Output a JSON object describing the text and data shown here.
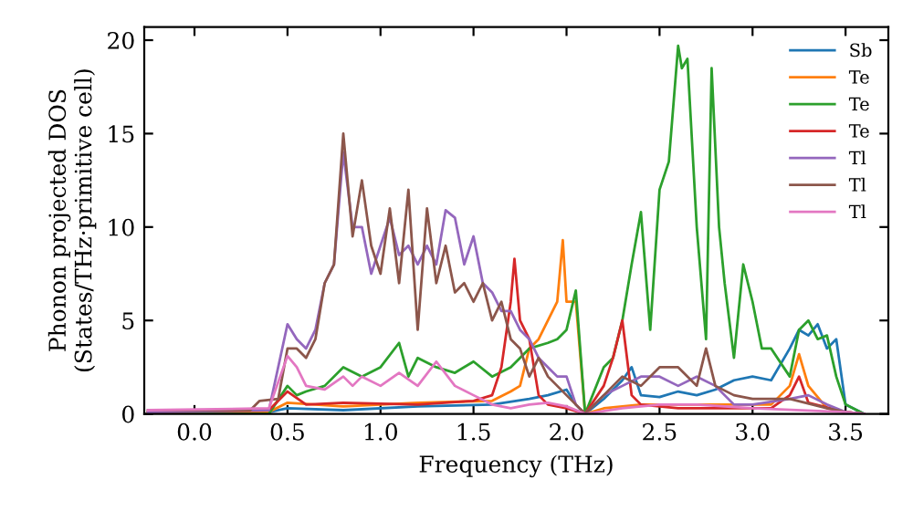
{
  "chart_data": {
    "type": "line",
    "xlabel": "Frequency (THz)",
    "ylabel": "Phonon projected DOS\n(States/THz·primitive cell)",
    "xlim": [
      -0.27,
      3.73
    ],
    "ylim": [
      0,
      20.7
    ],
    "xticks": [
      {
        "value": 0.0,
        "label": "0.0"
      },
      {
        "value": 0.5,
        "label": "0.5"
      },
      {
        "value": 1.0,
        "label": "1.0"
      },
      {
        "value": 1.5,
        "label": "1.5"
      },
      {
        "value": 2.0,
        "label": "2.0"
      },
      {
        "value": 2.5,
        "label": "2.5"
      },
      {
        "value": 3.0,
        "label": "3.0"
      },
      {
        "value": 3.5,
        "label": "3.5"
      }
    ],
    "yticks": [
      0,
      5,
      10,
      15,
      20
    ],
    "grid": false,
    "legend": "top right",
    "marker": "none",
    "line_style": "solid",
    "series": [
      {
        "name": "Sb",
        "color": "#1f77b4",
        "x": [
          -0.25,
          0.4,
          0.5,
          0.8,
          1.2,
          1.6,
          1.8,
          1.9,
          2.0,
          2.05,
          2.1,
          2.2,
          2.3,
          2.35,
          2.4,
          2.5,
          2.6,
          2.7,
          2.8,
          2.9,
          3.0,
          3.1,
          3.2,
          3.25,
          3.3,
          3.35,
          3.4,
          3.45,
          3.5,
          3.6
        ],
        "values": [
          0.1,
          0.1,
          0.3,
          0.2,
          0.4,
          0.5,
          0.8,
          1.0,
          1.3,
          0.5,
          0,
          0.8,
          1.8,
          2.5,
          1.0,
          0.9,
          1.2,
          1.0,
          1.3,
          1.8,
          2.0,
          1.8,
          3.5,
          4.5,
          4.2,
          4.8,
          3.5,
          4.0,
          0.5,
          0
        ]
      },
      {
        "name": "Te",
        "color": "#ff7f0e",
        "x": [
          -0.25,
          0.4,
          0.5,
          0.8,
          1.2,
          1.6,
          1.7,
          1.75,
          1.8,
          1.85,
          1.9,
          1.95,
          1.98,
          2.0,
          2.05,
          2.1,
          2.2,
          2.4,
          2.8,
          3.1,
          3.2,
          3.25,
          3.3,
          3.4,
          3.5,
          3.6
        ],
        "values": [
          0.1,
          0.1,
          0.6,
          0.4,
          0.6,
          0.7,
          1.2,
          1.5,
          3.5,
          4.0,
          5.0,
          6.0,
          9.3,
          6.0,
          6.0,
          0,
          0.3,
          0.5,
          0.5,
          0.5,
          1.5,
          3.2,
          1.5,
          0.3,
          0.1,
          0
        ]
      },
      {
        "name": "Te",
        "color": "#2ca02c",
        "x": [
          -0.25,
          0.4,
          0.5,
          0.55,
          0.6,
          0.7,
          0.8,
          0.9,
          1.0,
          1.1,
          1.15,
          1.2,
          1.3,
          1.4,
          1.5,
          1.6,
          1.7,
          1.8,
          1.9,
          1.95,
          2.0,
          2.05,
          2.1,
          2.2,
          2.25,
          2.3,
          2.35,
          2.4,
          2.45,
          2.5,
          2.55,
          2.6,
          2.62,
          2.65,
          2.7,
          2.75,
          2.78,
          2.82,
          2.85,
          2.9,
          2.95,
          3.0,
          3.05,
          3.1,
          3.2,
          3.25,
          3.3,
          3.35,
          3.4,
          3.45,
          3.5,
          3.6
        ],
        "values": [
          0,
          0,
          1.5,
          1.0,
          1.2,
          1.5,
          2.5,
          2.0,
          2.5,
          3.8,
          2.0,
          3.0,
          2.5,
          2.2,
          2.8,
          2.0,
          2.5,
          3.5,
          3.8,
          4.0,
          4.5,
          6.6,
          0,
          2.5,
          3.0,
          5.0,
          8.0,
          10.8,
          4.5,
          12.0,
          13.5,
          19.7,
          18.5,
          19.0,
          10.0,
          4.0,
          18.5,
          10.0,
          7.0,
          3.0,
          8.0,
          6.0,
          3.5,
          3.5,
          2.0,
          4.5,
          5.0,
          4.0,
          4.2,
          2.0,
          0.5,
          0
        ]
      },
      {
        "name": "Te",
        "color": "#d62728",
        "x": [
          -0.25,
          0.4,
          0.5,
          0.6,
          0.8,
          1.2,
          1.5,
          1.6,
          1.65,
          1.7,
          1.72,
          1.75,
          1.8,
          1.85,
          1.9,
          2.0,
          2.1,
          2.2,
          2.25,
          2.3,
          2.35,
          2.4,
          2.6,
          3.1,
          3.2,
          3.25,
          3.3,
          3.5,
          3.6
        ],
        "values": [
          0.1,
          0.2,
          1.2,
          0.5,
          0.6,
          0.5,
          0.7,
          1.0,
          2.5,
          6.0,
          8.3,
          5.0,
          4.0,
          1.0,
          0.5,
          0.3,
          0,
          1.5,
          3.0,
          5.0,
          1.0,
          0.5,
          0.3,
          0.3,
          1.0,
          2.0,
          0.6,
          0.1,
          0
        ]
      },
      {
        "name": "Tl",
        "color": "#9467bd",
        "x": [
          -0.25,
          0.4,
          0.5,
          0.55,
          0.6,
          0.65,
          0.7,
          0.75,
          0.8,
          0.85,
          0.9,
          0.95,
          1.0,
          1.05,
          1.1,
          1.15,
          1.2,
          1.25,
          1.3,
          1.35,
          1.4,
          1.45,
          1.5,
          1.55,
          1.6,
          1.65,
          1.7,
          1.75,
          1.8,
          1.85,
          1.9,
          1.95,
          2.0,
          2.05,
          2.1,
          2.2,
          2.3,
          2.4,
          2.5,
          2.6,
          2.7,
          2.8,
          2.9,
          3.0,
          3.2,
          3.3,
          3.4,
          3.5,
          3.6
        ],
        "values": [
          0.1,
          0.2,
          4.8,
          4.0,
          3.5,
          4.5,
          7.0,
          8.0,
          14.0,
          10.0,
          10.0,
          7.5,
          9.0,
          10.5,
          8.5,
          9.0,
          8.0,
          9.0,
          8.0,
          10.9,
          10.5,
          8.0,
          9.5,
          7.0,
          6.5,
          5.5,
          5.5,
          4.5,
          4.0,
          3.0,
          2.5,
          2.0,
          2.0,
          0.5,
          0,
          1.0,
          1.5,
          2.0,
          2.0,
          1.5,
          2.0,
          1.5,
          0.5,
          0.5,
          0.8,
          1.0,
          0.5,
          0.1,
          0
        ]
      },
      {
        "name": "Tl",
        "color": "#8c564b",
        "x": [
          -0.25,
          0.3,
          0.35,
          0.45,
          0.5,
          0.55,
          0.6,
          0.65,
          0.7,
          0.75,
          0.8,
          0.85,
          0.9,
          0.95,
          1.0,
          1.05,
          1.1,
          1.15,
          1.2,
          1.25,
          1.3,
          1.35,
          1.4,
          1.45,
          1.5,
          1.55,
          1.6,
          1.65,
          1.7,
          1.75,
          1.8,
          1.85,
          1.9,
          1.95,
          2.0,
          2.05,
          2.1,
          2.2,
          2.3,
          2.4,
          2.5,
          2.6,
          2.7,
          2.75,
          2.8,
          2.9,
          3.0,
          3.2,
          3.4,
          3.5,
          3.6
        ],
        "values": [
          0.2,
          0.2,
          0.7,
          0.8,
          3.5,
          3.5,
          3.0,
          4.0,
          7.0,
          8.0,
          15.0,
          9.5,
          12.5,
          9.0,
          7.5,
          11.0,
          7.0,
          12.0,
          4.5,
          11.0,
          7.0,
          9.0,
          6.5,
          7.0,
          6.0,
          7.0,
          5.0,
          6.0,
          4.0,
          3.5,
          2.0,
          3.0,
          2.0,
          1.5,
          1.0,
          0.5,
          0,
          1.0,
          2.0,
          1.5,
          2.5,
          2.5,
          1.5,
          3.5,
          1.5,
          1.0,
          0.8,
          0.8,
          0.3,
          0.1,
          0
        ]
      },
      {
        "name": "Tl",
        "color": "#e377c2",
        "x": [
          -0.25,
          0.4,
          0.5,
          0.55,
          0.6,
          0.7,
          0.8,
          0.85,
          0.9,
          1.0,
          1.1,
          1.2,
          1.3,
          1.4,
          1.5,
          1.6,
          1.7,
          1.8,
          1.9,
          2.0,
          2.1,
          2.3,
          2.5,
          2.7,
          3.0,
          3.5,
          3.6
        ],
        "values": [
          0.2,
          0.3,
          3.1,
          2.5,
          1.5,
          1.3,
          2.0,
          1.5,
          2.0,
          1.5,
          2.2,
          1.5,
          2.8,
          1.5,
          1.0,
          0.5,
          0.3,
          0.5,
          0.6,
          0.4,
          0,
          0.3,
          0.5,
          0.5,
          0.3,
          0.1,
          0
        ]
      }
    ]
  }
}
